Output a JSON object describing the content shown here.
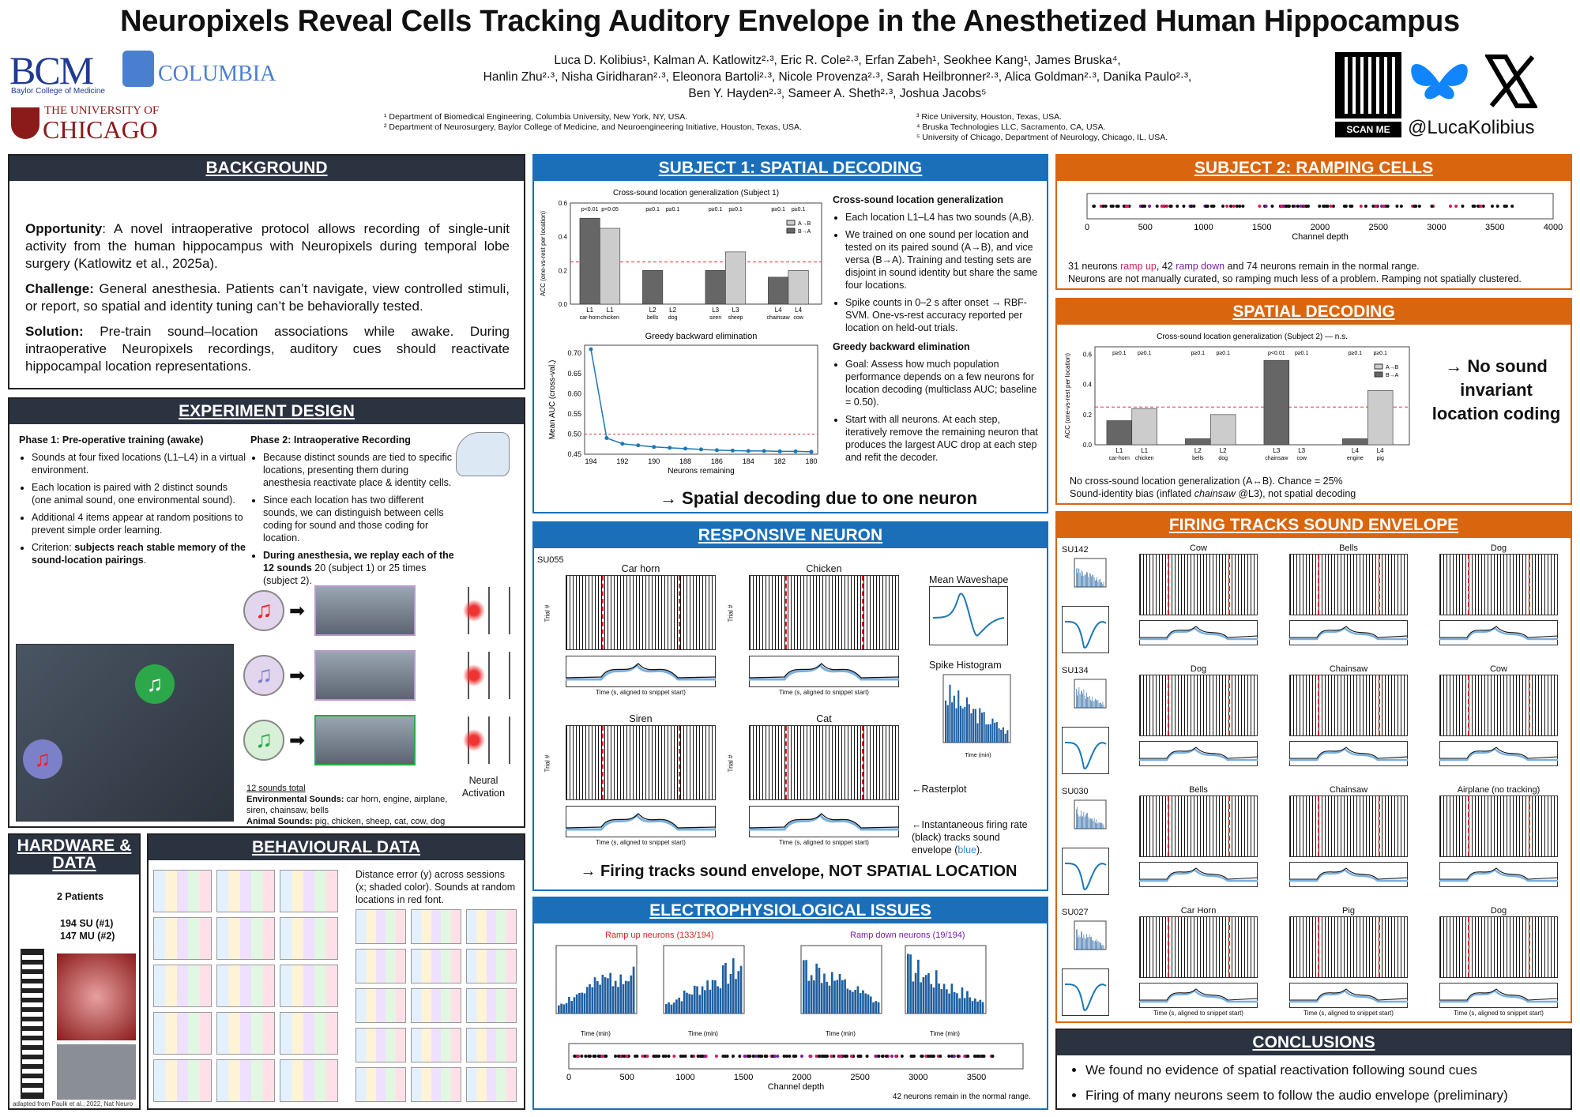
{
  "title": "Neuropixels Reveal Cells Tracking Auditory Envelope in the Anesthetized Human Hippocampus",
  "logos": {
    "bcm": "BCM",
    "bcm_sub": "Baylor College of Medicine",
    "columbia": "COLUMBIA",
    "uchicago_top": "THE UNIVERSITY OF",
    "uchicago": "CHICAGO",
    "handle": "@LucaKolibius",
    "scan": "SCAN ME"
  },
  "authors": {
    "line1": "Luca D. Kolibius¹, Kalman A. Katlowitz²·³, Eric R. Cole²·³, Erfan Zabeh¹, Seokhee Kang¹, James Bruska⁴,",
    "line2": "Hanlin Zhu²·³, Nisha Giridharan²·³, Eleonora Bartoli²·³, Nicole Provenza²·³, Sarah Heilbronner²·³, Alica Goldman²·³, Danika Paulo²·³,",
    "line3": "Ben Y. Hayden²·³, Sameer A. Sheth²·³, Joshua Jacobs⁵"
  },
  "affiliations": {
    "a1": "¹ Department of Biomedical Engineering, Columbia University, New York, NY, USA.",
    "a2": "² Department of Neurosurgery, Baylor College of Medicine, and Neuroengineering Initiative, Houston, Texas, USA.",
    "a3": "³ Rice University, Houston, Texas, USA.",
    "a4": "⁴ Bruska Technologies LLC, Sacramento, CA, USA.",
    "a5": "⁵ University of Chicago, Department of Neurology, Chicago, IL, USA."
  },
  "background": {
    "title": "BACKGROUND",
    "opp_h": "Opportunity",
    "opp": ": A novel intraoperative protocol allows recording of single-unit activity from the human hippocampus with Neuropixels during temporal lobe surgery (Katlowitz et al., 2025a).",
    "ch_h": "Challenge:",
    "ch": " General anesthesia. Patients can’t navigate, view controlled stimuli, or report, so spatial and identity tuning can’t be behaviorally tested.",
    "sol_h": "Solution:",
    "sol": " Pre-train sound–location associations while awake. During intraoperative Neuropixels recordings, auditory cues should reactivate hippocampal location representations."
  },
  "experiment": {
    "title": "EXPERIMENT DESIGN",
    "p1_title": "Phase 1: Pre-operative training (awake)",
    "p1_items": [
      "Sounds at four fixed locations (L1–L4) in a virtual environment.",
      "Each location is paired with 2 distinct sounds (one animal sound, one environmental sound).",
      "Additional 4 items appear at random positions to prevent simple order learning."
    ],
    "p1_last_pre": "Criterion: ",
    "p1_last_bold": "subjects reach stable memory of the sound-location pairings",
    "p1_last_post": ".",
    "p2_title": "Phase 2: Intraoperative Recording",
    "p2_items": [
      "Because distinct sounds are tied to specific locations, presenting them during anesthesia reactivate place & identity cells.",
      "Since each location has two different sounds, we can distinguish between cells coding for sound and those coding for location."
    ],
    "p2_last_bold": "During anesthesia, we replay each of the 12 sounds",
    "p2_last_post": " 20 (subject 1) or 25 times (subject 2).",
    "sounds_total": "12 sounds total",
    "env_h": "Environmental Sounds:",
    "env": " car horn, engine, airplane, siren, chainsaw, bells",
    "ani_h": "Animal Sounds:",
    "ani": " pig, chicken, sheep, cat, cow, dog",
    "neural": "Neural Activation"
  },
  "hardware": {
    "title": "HARDWARE & DATA",
    "patients": "2 Patients",
    "su": "194 SU (#1)",
    "mu": "147 MU (#2)",
    "credit": "adapted from Paulk et al., 2022, Nat Neuro"
  },
  "behaviour": {
    "title": "BEHAVIOURAL DATA",
    "text": "Distance error (y) across sessions (x; shaded color). Sounds at random locations in red font."
  },
  "s1": {
    "title": "SUBJECT 1: SPATIAL DECODING",
    "chart_title": "Cross-sound location generalization (Subject 1)",
    "h1": "Cross-sound location generalization",
    "items1": [
      "Each location L1–L4 has two sounds (A,B).",
      "We trained on one sound per location and tested on its paired sound (A→B), and vice versa (B→A). Training and testing sets are disjoint in sound identity but share the same four locations.",
      "Spike counts in 0–2 s after onset → RBF-SVM. One-vs-rest accuracy reported per location on held-out trials."
    ],
    "greedy_title": "Greedy backward elimination",
    "h2": "Greedy backward elimination",
    "items2": [
      "Goal: Assess how much population performance depends on a few neurons for location decoding (multiclass AUC; baseline = 0.50).",
      "Start with all neurons. At each step, iteratively remove the remaining neuron that produces the largest AUC drop at each step and refit the decoder."
    ],
    "take": "→ Spatial decoding due to one neuron",
    "ylab": "Mean AUC (cross-val.)",
    "xlab": "Neurons remaining",
    "acc_ylab": "ACC (one-vs-rest per location)"
  },
  "s2r": {
    "title": "SUBJECT 2: RAMPING CELLS",
    "xlab": "Channel depth",
    "t1a": "31 neurons ",
    "t1b": "ramp up",
    "t1c": ", 42 ",
    "t1d": "ramp down",
    "t1e": " and 74 neurons remain in the normal range.",
    "t2": "Neurons are not manually curated, so ramping much less of a problem. Ramping not spatially clustered."
  },
  "s2d": {
    "title": "SPATIAL DECODING",
    "chart_title": "Cross-sound location generalization (Subject 2) — n.s.",
    "side": "→ No sound invariant location coding",
    "t1": "No cross-sound location generalization (A↔B). Chance = 25%",
    "t2a": "Sound-identity bias (inflated ",
    "t2b": "chainsaw",
    "t2c": " @L3), not spatial decoding",
    "ylab": "ACC (one-vs-rest per location)"
  },
  "resp": {
    "title": "RESPONSIVE NEURON",
    "unit": "SU055",
    "panels": [
      "Car horn",
      "Chicken",
      "Siren",
      "Cat"
    ],
    "wave": "Mean Waveshape",
    "hist": "Spike Histogram",
    "raster_note": "←Rasterplot",
    "fr_note_a": "←Instantaneous firing rate (black) tracks sound envelope (",
    "fr_note_b": "blue",
    "fr_note_c": ").",
    "take": "→ Firing tracks sound envelope, NOT SPATIAL LOCATION",
    "trial": "Trial #",
    "fr": "Firing Rate (Hz)",
    "xlab": "Time (s, aligned to snippet start)",
    "hist_x": "Time (min)",
    "hist_y": "Spike Count"
  },
  "ephys": {
    "title": "ELECTROPHYSIOLOGICAL ISSUES",
    "up": "Ramp up neurons (133/194)",
    "down": "Ramp down neurons (19/194)",
    "xlab": "Channel depth",
    "note": "42 neurons remain in the normal range.",
    "hx": "Time (min)",
    "hy": "Spike Count"
  },
  "envelope": {
    "title": "FIRING TRACKS SOUND ENVELOPE",
    "rows": [
      {
        "unit": "SU142",
        "panels": [
          "Cow",
          "Bells",
          "Dog"
        ]
      },
      {
        "unit": "SU134",
        "panels": [
          "Dog",
          "Chainsaw",
          "Cow"
        ]
      },
      {
        "unit": "SU030",
        "panels": [
          "Bells",
          "Chainsaw",
          "Airplane (no tracking)"
        ]
      },
      {
        "unit": "SU027",
        "panels": [
          "Car Horn",
          "Pig",
          "Dog"
        ]
      }
    ],
    "trial": "Trial #",
    "fr": "FR (Hz)",
    "xlab": "Time (s, aligned to snippet start)"
  },
  "conclusions": {
    "title": "CONCLUSIONS",
    "items": [
      "We found no evidence of spatial reactivation following sound cues",
      "Firing of many neurons seem to follow the audio envelope (preliminary)"
    ]
  },
  "chart_data": [
    {
      "type": "bar",
      "title": "Cross-sound location generalization (Subject 1)",
      "categories": [
        "L1",
        "L2",
        "L3",
        "L4"
      ],
      "sublabels": [
        [
          "car-horn",
          "chicken"
        ],
        [
          "bells",
          "dog"
        ],
        [
          "siren",
          "sheep"
        ],
        [
          "chainsaw",
          "cow"
        ]
      ],
      "pvals": [
        "p<0.01",
        "p<0.05",
        "p≥0.1",
        "p≥0.1",
        "p≥0.1",
        "p≥0.1",
        "p≥0.1",
        "p≥0.1"
      ],
      "series": [
        {
          "name": "A→B",
          "values": [
            0.51,
            0.2,
            0.2,
            0.16
          ]
        },
        {
          "name": "B→A",
          "values": [
            0.45,
            0,
            0.31,
            0.2
          ]
        }
      ],
      "ylim": [
        0,
        0.6
      ],
      "chance": 0.25
    },
    {
      "type": "line",
      "title": "Greedy backward elimination",
      "x": [
        194,
        193,
        192,
        191,
        190,
        189,
        188,
        187,
        186,
        185,
        184,
        183,
        182,
        181,
        180
      ],
      "y": [
        0.71,
        0.49,
        0.476,
        0.472,
        0.468,
        0.466,
        0.464,
        0.462,
        0.46,
        0.459,
        0.458,
        0.458,
        0.457,
        0.457,
        0.456
      ],
      "ylim": [
        0.45,
        0.72
      ],
      "baseline": 0.5
    },
    {
      "type": "bar",
      "title": "Cross-sound location generalization (Subject 2) — n.s.",
      "categories": [
        "L1",
        "L2",
        "L3",
        "L4"
      ],
      "sublabels": [
        [
          "car-horn",
          "chicken"
        ],
        [
          "bells",
          "dog"
        ],
        [
          "chainsaw",
          "cow"
        ],
        [
          "engine",
          "pig"
        ]
      ],
      "pvals": [
        "p≥0.1",
        "p≥0.1",
        "p≥0.1",
        "p≥0.1",
        "p<0.01",
        "p≥0.1",
        "p≥0.1",
        "p≥0.1"
      ],
      "series": [
        {
          "name": "A→B",
          "values": [
            0.16,
            0.04,
            0.56,
            0.04
          ]
        },
        {
          "name": "B→A",
          "values": [
            0.24,
            0.2,
            0,
            0.36
          ]
        }
      ],
      "ylim": [
        0,
        0.65
      ],
      "chance": 0.25
    },
    {
      "type": "scatter",
      "title": "Subject 2 channel depth",
      "xlabel": "Channel depth",
      "xticks": [
        0,
        500,
        1000,
        1500,
        2000,
        2500,
        3000,
        3500,
        4000
      ]
    },
    {
      "type": "scatter",
      "title": "Subject 1 channel depth",
      "xlabel": "Channel depth",
      "xticks": [
        0,
        500,
        1000,
        1500,
        2000,
        2500,
        3000,
        3500
      ]
    }
  ],
  "colors": {
    "blue": "#1a6fb8",
    "orange": "#d9650f",
    "dark": "#2b3240",
    "ramp_up": "#d81b60",
    "ramp_down": "#7b1fa2"
  }
}
